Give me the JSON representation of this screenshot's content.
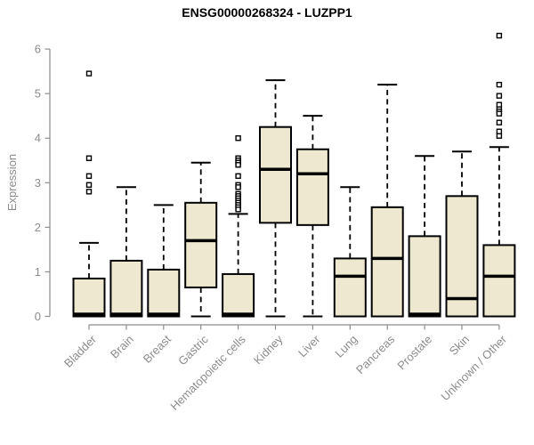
{
  "chart_data": {
    "type": "boxplot",
    "title": "ENSG00000268324 - LUZPP1",
    "ylabel": "Expression",
    "ylim": [
      0,
      6.5
    ],
    "yticks": [
      0,
      1,
      2,
      3,
      4,
      5,
      6
    ],
    "grid": false,
    "legend": false,
    "colors": {
      "box_fill": "#EDE8CF",
      "box_stroke": "#000000",
      "axis": "#8C8C8C",
      "title": "#000000",
      "outlier_fill": "#FFFFFF"
    },
    "categories": [
      "Bladder",
      "Brain",
      "Breast",
      "Gastric",
      "Hematopoietic cells",
      "Kidney",
      "Liver",
      "Lung",
      "Pancreas",
      "Prostate",
      "Skin",
      "Unknown / Other"
    ],
    "boxes": [
      {
        "label": "Bladder",
        "whisker_low": 0,
        "q1": 0,
        "median": 0.05,
        "q3": 0.85,
        "whisker_high": 1.65,
        "outliers": [
          5.45,
          3.55,
          3.15,
          2.95,
          2.8
        ]
      },
      {
        "label": "Brain",
        "whisker_low": 0,
        "q1": 0,
        "median": 0.05,
        "q3": 1.25,
        "whisker_high": 2.9,
        "outliers": []
      },
      {
        "label": "Breast",
        "whisker_low": 0,
        "q1": 0,
        "median": 0.05,
        "q3": 1.05,
        "whisker_high": 2.5,
        "outliers": []
      },
      {
        "label": "Gastric",
        "whisker_low": 0,
        "q1": 0.65,
        "median": 1.7,
        "q3": 2.55,
        "whisker_high": 3.45,
        "outliers": []
      },
      {
        "label": "Hematopoietic cells",
        "whisker_low": 0,
        "q1": 0,
        "median": 0.05,
        "q3": 0.95,
        "whisker_high": 2.3,
        "outliers": [
          4.0,
          3.55,
          3.5,
          3.45,
          3.4,
          3.15,
          2.95,
          2.9,
          2.75,
          2.7,
          2.65,
          2.6,
          2.55,
          2.5,
          2.45,
          2.4
        ]
      },
      {
        "label": "Kidney",
        "whisker_low": 0,
        "q1": 2.1,
        "median": 3.3,
        "q3": 4.25,
        "whisker_high": 5.3,
        "outliers": []
      },
      {
        "label": "Liver",
        "whisker_low": 0,
        "q1": 2.05,
        "median": 3.2,
        "q3": 3.75,
        "whisker_high": 4.5,
        "outliers": []
      },
      {
        "label": "Lung",
        "whisker_low": 0,
        "q1": 0,
        "median": 0.9,
        "q3": 1.3,
        "whisker_high": 2.9,
        "outliers": []
      },
      {
        "label": "Pancreas",
        "whisker_low": 0,
        "q1": 0,
        "median": 1.3,
        "q3": 2.45,
        "whisker_high": 5.2,
        "outliers": []
      },
      {
        "label": "Prostate",
        "whisker_low": 0,
        "q1": 0,
        "median": 0.05,
        "q3": 1.8,
        "whisker_high": 3.6,
        "outliers": []
      },
      {
        "label": "Skin",
        "whisker_low": 0,
        "q1": 0,
        "median": 0.4,
        "q3": 2.7,
        "whisker_high": 3.7,
        "outliers": []
      },
      {
        "label": "Unknown / Other",
        "whisker_low": 0,
        "q1": 0,
        "median": 0.9,
        "q3": 1.6,
        "whisker_high": 3.8,
        "outliers": [
          6.3,
          5.2,
          4.95,
          4.75,
          4.65,
          4.6,
          4.55,
          4.35,
          4.15,
          4.05
        ]
      }
    ]
  }
}
